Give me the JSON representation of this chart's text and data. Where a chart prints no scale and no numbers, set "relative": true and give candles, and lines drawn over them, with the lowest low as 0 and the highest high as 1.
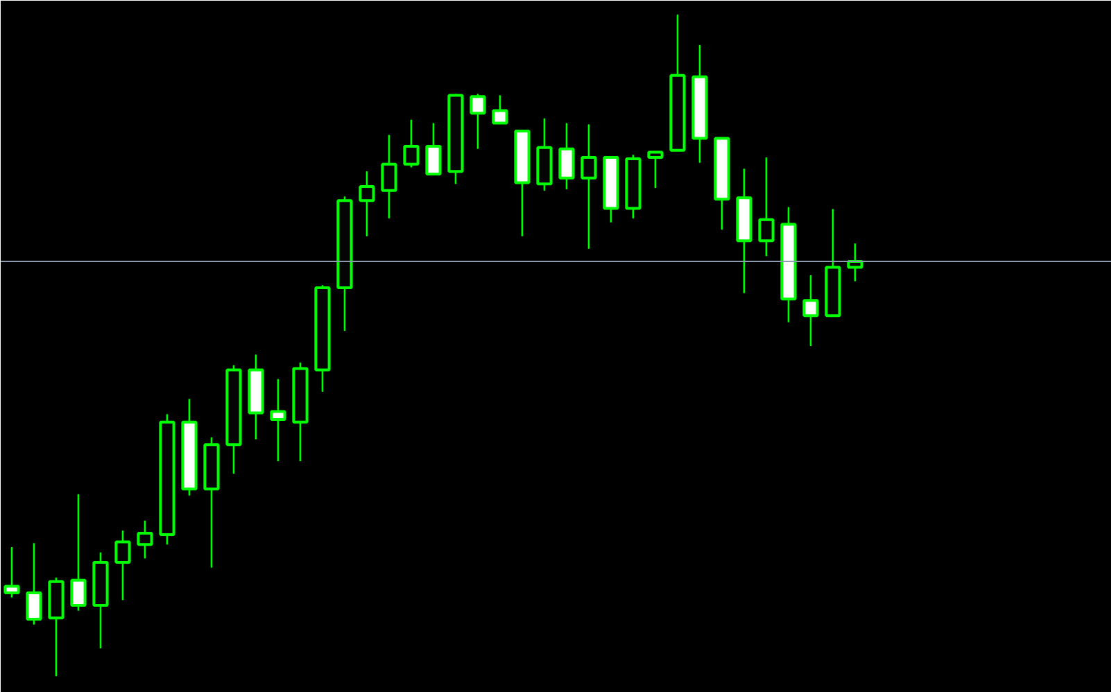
{
  "chart_data": {
    "type": "candlestick",
    "relative": true,
    "color": "#00ff00",
    "grid": false,
    "categories": [
      null,
      null,
      null,
      null,
      null,
      null,
      null,
      null,
      null,
      null,
      null,
      null,
      null,
      null,
      null,
      null,
      null,
      null,
      null,
      null,
      null,
      null,
      null,
      null,
      null,
      null,
      null,
      null,
      null,
      null,
      null,
      null,
      null,
      null,
      null,
      null,
      null,
      null,
      null
    ],
    "ohlc": [
      [
        0.136,
        0.195,
        0.119,
        0.126
      ],
      [
        0.126,
        0.201,
        0.078,
        0.086
      ],
      [
        0.088,
        0.149,
        0,
        0.143
      ],
      [
        0.145,
        0.275,
        0.099,
        0.107
      ],
      [
        0.107,
        0.187,
        0.042,
        0.172
      ],
      [
        0.172,
        0.22,
        0.115,
        0.203
      ],
      [
        0.199,
        0.235,
        0.178,
        0.216
      ],
      [
        0.214,
        0.396,
        0.199,
        0.384
      ],
      [
        0.384,
        0.419,
        0.273,
        0.283
      ],
      [
        0.283,
        0.361,
        0.164,
        0.35
      ],
      [
        0.35,
        0.47,
        0.306,
        0.463
      ],
      [
        0.463,
        0.486,
        0.358,
        0.398
      ],
      [
        0.4,
        0.449,
        0.325,
        0.388
      ],
      [
        0.384,
        0.474,
        0.325,
        0.465
      ],
      [
        0.463,
        0.591,
        0.43,
        0.587
      ],
      [
        0.587,
        0.725,
        0.522,
        0.719
      ],
      [
        0.719,
        0.763,
        0.665,
        0.74
      ],
      [
        0.734,
        0.818,
        0.692,
        0.774
      ],
      [
        0.774,
        0.841,
        0.769,
        0.801
      ],
      [
        0.801,
        0.836,
        0.757,
        0.759
      ],
      [
        0.763,
        0.88,
        0.744,
        0.878
      ],
      [
        0.876,
        0.88,
        0.797,
        0.851
      ],
      [
        0.855,
        0.878,
        0.836,
        0.836
      ],
      [
        0.824,
        0.824,
        0.665,
        0.746
      ],
      [
        0.744,
        0.843,
        0.734,
        0.799
      ],
      [
        0.797,
        0.836,
        0.736,
        0.753
      ],
      [
        0.753,
        0.834,
        0.646,
        0.784
      ],
      [
        0.784,
        0.786,
        0.686,
        0.707
      ],
      [
        0.707,
        0.788,
        0.692,
        0.782
      ],
      [
        0.784,
        0.792,
        0.738,
        0.792
      ],
      [
        0.795,
        1,
        0.795,
        0.908
      ],
      [
        0.906,
        0.954,
        0.776,
        0.813
      ],
      [
        0.813,
        0.813,
        0.675,
        0.721
      ],
      [
        0.723,
        0.767,
        0.579,
        0.658
      ],
      [
        0.658,
        0.784,
        0.635,
        0.69
      ],
      [
        0.683,
        0.709,
        0.535,
        0.57
      ],
      [
        0.568,
        0.606,
        0.499,
        0.545
      ],
      [
        0.545,
        0.706,
        0.545,
        0.618
      ],
      [
        0.618,
        0.654,
        0.597,
        0.627
      ]
    ],
    "ref_lines": [
      {
        "axis": "y",
        "value": 0.627,
        "color": "#8c9bb0"
      }
    ]
  }
}
